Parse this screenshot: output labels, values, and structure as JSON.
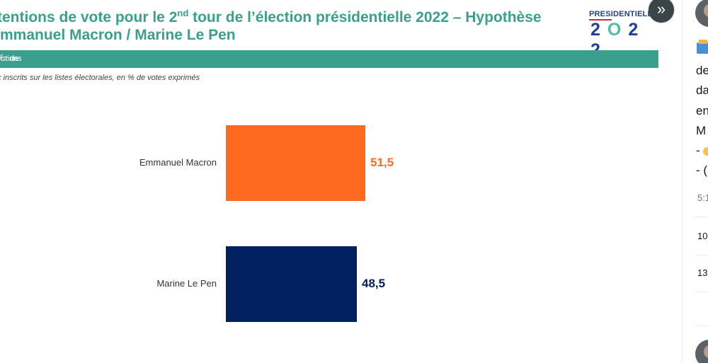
{
  "slide": {
    "title_part1": "tentions de vote pour le 2",
    "title_sup": "nd",
    "title_part2": " tour de l’élection présidentielle 2022 – Hypothèse",
    "title_line2": "Emmanuel Macron / Marine Le Pen",
    "banner_part1": "tentions de vote pour le 2",
    "banner_sup": "nd",
    "banner_part2": " tour de l’élection présidentielle 2022",
    "subtitle": "x inscrits sur les listes électorales, en % de votes exprimés",
    "logo_top": "PRESIDENTIELLE",
    "logo_year_a": "2",
    "logo_year_b": "O",
    "logo_year_c": "2 2"
  },
  "colors": {
    "accent": "#3a9f8c",
    "macron": "#ff6a21",
    "lepen": "#002060"
  },
  "chart_data": {
    "type": "bar",
    "orientation": "horizontal",
    "categories": [
      "Emmanuel Macron",
      "Marine Le Pen"
    ],
    "values": [
      51.5,
      48.5
    ],
    "value_labels": [
      "51,5",
      "48,5"
    ],
    "xlim": [
      0,
      100
    ]
  },
  "nav": {
    "next_icon": "double-chevron-right-icon",
    "next_glyph": "»"
  },
  "tweet": {
    "lines": [
      "de",
      "da",
      "en",
      "M",
      "- ",
      "- ("
    ],
    "time": "5:1",
    "stat1": "10",
    "stat2": "13"
  }
}
